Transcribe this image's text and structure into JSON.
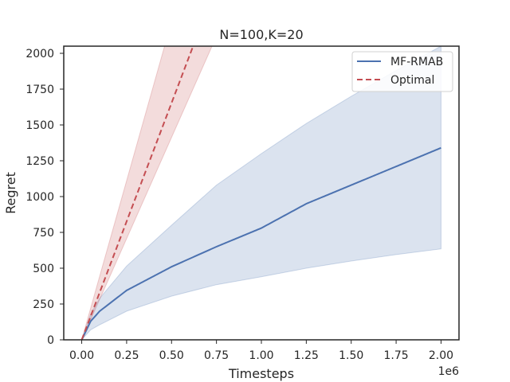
{
  "chart_data": {
    "type": "line",
    "title": "N=100,K=20",
    "xlabel": "Timesteps",
    "ylabel": "Regret",
    "x_offset_text": "1e6",
    "xlim": [
      -0.1,
      2.1
    ],
    "ylim": [
      0,
      2050
    ],
    "x_ticks": [
      "0.00",
      "0.25",
      "0.50",
      "0.75",
      "1.00",
      "1.25",
      "1.50",
      "1.75",
      "2.00"
    ],
    "y_ticks": [
      "0",
      "250",
      "500",
      "750",
      "1000",
      "1250",
      "1500",
      "1750",
      "2000"
    ],
    "grid": false,
    "legend_position": "top-right",
    "series": [
      {
        "name": "MF-RMAB",
        "color": "#4c72b0",
        "style": "solid",
        "x": [
          0.0,
          0.05,
          0.1,
          0.25,
          0.5,
          0.75,
          1.0,
          1.25,
          1.5,
          1.75,
          2.0
        ],
        "y": [
          0,
          130,
          200,
          345,
          510,
          650,
          780,
          950,
          1080,
          1210,
          1340
        ],
        "band_lower": [
          0,
          70,
          105,
          200,
          305,
          385,
          440,
          500,
          550,
          595,
          635
        ],
        "band_upper": [
          0,
          180,
          290,
          515,
          800,
          1080,
          1300,
          1510,
          1700,
          1880,
          2050
        ]
      },
      {
        "name": "Optimal",
        "color": "#c44e52",
        "style": "dashed",
        "x": [
          0.0,
          0.62
        ],
        "y": [
          0,
          2050
        ],
        "band_lower": [
          0,
          1580
        ],
        "band_upper": [
          0,
          2050
        ],
        "band_x": [
          0.0,
          0.49,
          0.62,
          0.77
        ],
        "band_upper_full": [
          0,
          2050,
          2050,
          2050
        ],
        "band_lower_full": [
          0,
          1250,
          1580,
          2050
        ]
      }
    ]
  }
}
